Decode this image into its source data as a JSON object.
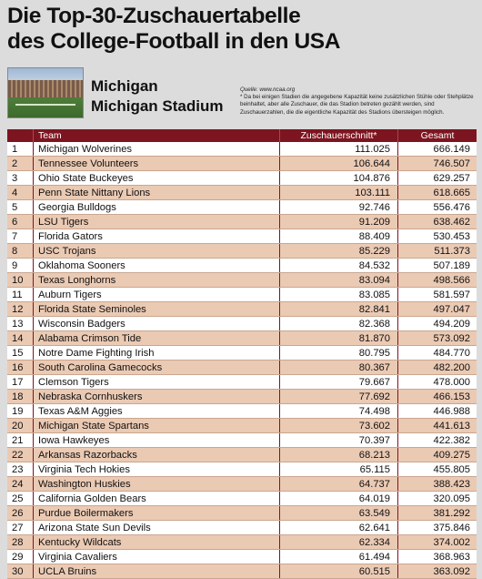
{
  "header": {
    "title_line1": "Die Top-30-Zuschauertabelle",
    "title_line2": "des College-Football in den USA"
  },
  "feature": {
    "team": "Michigan",
    "stadium": "Michigan Stadium"
  },
  "source": {
    "label": "Quelle: www.ncaa.org",
    "note": "* Da bei einigen Stadien die angegebene Kapazität keine zusätzlichen Stühle oder Stehplätze beinhaltet, aber alle Zuschauer, die das Stadion betreten gezählt werden, sind Zuschauerzahlen, die die eigentliche Kapazität des Stadions übersteigen möglich."
  },
  "colors": {
    "header_bg": "#7d1520",
    "row_alt": "#ebcab4",
    "page_bg": "#dcdcdc"
  },
  "chart_data": {
    "type": "table",
    "columns": [
      "",
      "Team",
      "Zuschauerschnitt*",
      "Gesamt"
    ],
    "rows": [
      [
        "1",
        "Michigan Wolverines",
        "111.025",
        "666.149"
      ],
      [
        "2",
        "Tennessee Volunteers",
        "106.644",
        "746.507"
      ],
      [
        "3",
        "Ohio State Buckeyes",
        "104.876",
        "629.257"
      ],
      [
        "4",
        "Penn State Nittany Lions",
        "103.111",
        "618.665"
      ],
      [
        "5",
        "Georgia Bulldogs",
        "92.746",
        "556.476"
      ],
      [
        "6",
        "LSU Tigers",
        "91.209",
        "638.462"
      ],
      [
        "7",
        "Florida Gators",
        "88.409",
        "530.453"
      ],
      [
        "8",
        "USC Trojans",
        "85.229",
        "511.373"
      ],
      [
        "9",
        "Oklahoma Sooners",
        "84.532",
        "507.189"
      ],
      [
        "10",
        "Texas Longhorns",
        "83.094",
        "498.566"
      ],
      [
        "11",
        "Auburn Tigers",
        "83.085",
        "581.597"
      ],
      [
        "12",
        "Florida State Seminoles",
        "82.841",
        "497.047"
      ],
      [
        "13",
        "Wisconsin Badgers",
        "82.368",
        "494.209"
      ],
      [
        "14",
        "Alabama Crimson Tide",
        "81.870",
        "573.092"
      ],
      [
        "15",
        "Notre Dame Fighting Irish",
        "80.795",
        "484.770"
      ],
      [
        "16",
        "South Carolina Gamecocks",
        "80.367",
        "482.200"
      ],
      [
        "17",
        "Clemson Tigers",
        "79.667",
        "478.000"
      ],
      [
        "18",
        "Nebraska Cornhuskers",
        "77.692",
        "466.153"
      ],
      [
        "19",
        "Texas A&M Aggies",
        "74.498",
        "446.988"
      ],
      [
        "20",
        "Michigan State Spartans",
        "73.602",
        "441.613"
      ],
      [
        "21",
        "Iowa Hawkeyes",
        "70.397",
        "422.382"
      ],
      [
        "22",
        "Arkansas Razorbacks",
        "68.213",
        "409.275"
      ],
      [
        "23",
        "Virginia Tech Hokies",
        "65.115",
        "455.805"
      ],
      [
        "24",
        "Washington Huskies",
        "64.737",
        "388.423"
      ],
      [
        "25",
        "California Golden Bears",
        "64.019",
        "320.095"
      ],
      [
        "26",
        "Purdue Boilermakers",
        "63.549",
        "381.292"
      ],
      [
        "27",
        "Arizona State Sun Devils",
        "62.641",
        "375.846"
      ],
      [
        "28",
        "Kentucky Wildcats",
        "62.334",
        "374.002"
      ],
      [
        "29",
        "Virginia Cavaliers",
        "61.494",
        "368.963"
      ],
      [
        "30",
        "UCLA Bruins",
        "60.515",
        "363.092"
      ]
    ]
  }
}
